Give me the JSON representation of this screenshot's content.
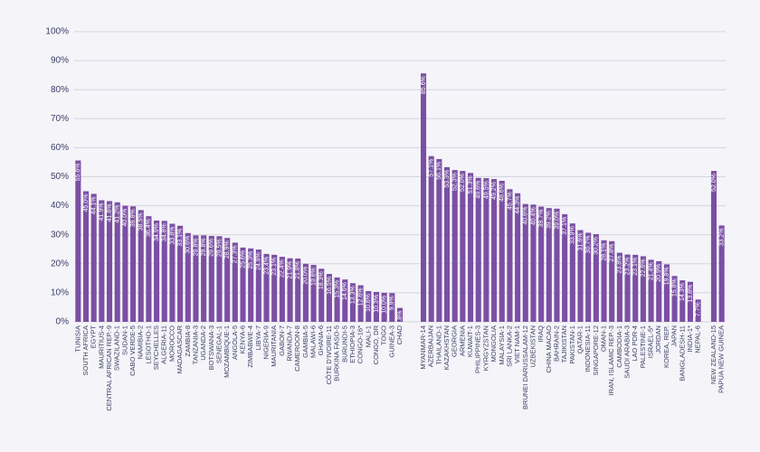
{
  "chart_data": {
    "type": "bar",
    "color": "#7b4fa3",
    "grid": true,
    "ylim": [
      0,
      100
    ],
    "yticks": [
      {
        "value": 0,
        "label": "0%"
      },
      {
        "value": 10,
        "label": "10%"
      },
      {
        "value": 20,
        "label": "20%"
      },
      {
        "value": 30,
        "label": "30%"
      },
      {
        "value": 40,
        "label": "40%"
      },
      {
        "value": 50,
        "label": "50%"
      },
      {
        "value": 60,
        "label": "60%"
      },
      {
        "value": 70,
        "label": "70%"
      },
      {
        "value": 80,
        "label": "80%"
      },
      {
        "value": 90,
        "label": "90%"
      },
      {
        "value": 100,
        "label": "100%"
      }
    ],
    "categories": [
      "TUNISIA",
      "SOUTH AFRICA",
      "EGYPT",
      "MAURITIUS-4",
      "CENTRAL AFRICAN REP.-9",
      "SWAZILAND-1",
      "SUDAN-1",
      "CABO VERDE-5",
      "NAMIBIA-2",
      "LESOTHO-1",
      "SEYCHELLES",
      "ALGERIA-11",
      "MOROCCO",
      "MADAGASCAR",
      "ZAMBIA-8",
      "TANZANIA-3",
      "UGANDA-2",
      "BOTSWANA-3",
      "SENEGAL-1",
      "MOZAMBIQUE-1",
      "ANGOLA-5",
      "KENYA-6",
      "ZIMBABWE-4",
      "LIBYA-7",
      "NIGERIA-9",
      "MAURITANIA",
      "GABON-7",
      "RWANDA-7",
      "CAMEROON-8",
      "GAMBIA-5",
      "MALAWI-6",
      "GHANA-6",
      "CÔTE D'IVOIRE-11",
      "BURKINA FASO-5",
      "BURUNDI-5",
      "ETHIOPIA-3",
      "CONGO-16*",
      "MALI-1",
      "CONGO, DR",
      "TOGO",
      "GUINEA-3",
      "CHAD",
      null,
      null,
      "MYANMAR-14",
      "AZERBAIJAN",
      "THAILAND-1",
      "KAZAKHSTAN",
      "GEORGIA",
      "ARMENIA",
      "KUWAIT-1",
      "PHILIPPINES-3",
      "KYRGYZSTAN",
      "MONGOLIA",
      "MALAYSIA-1",
      "SRI LANKA-2",
      "VIET NAM-1",
      "BRUNEI DARUSSALAM-12",
      "UZBEKISTAN",
      "IRAQ",
      "CHINA MACAO",
      "BAHRAIN-2",
      "TAJIKISTAN",
      "PAKISTAN-1",
      "QATAR-1",
      "INDONESIA-11",
      "SINGAPORE-12",
      "OMAN-1",
      "IRAN, ISLAMIC REP.-3",
      "CAMBODIA-1",
      "SAUDI ARABIA-3",
      "LAO PDR-4",
      "PALESTINE-1",
      "ISRAEL-5*",
      "JORDAN",
      "KOREA, REP.",
      "JAPAN",
      "BANGLADESH-11",
      "INDIA-1*",
      "NEPAL-6",
      null,
      "NEW ZEALAND-15",
      "PAPUA NEW GUINEA"
    ],
    "values": [
      55.6,
      45.0,
      44.1,
      41.9,
      41.6,
      41.2,
      40.0,
      39.8,
      38.5,
      36.4,
      34.9,
      34.8,
      33.8,
      33.1,
      30.6,
      29.8,
      29.8,
      29.6,
      29.5,
      28.9,
      27.3,
      25.6,
      25.3,
      24.9,
      23.4,
      23.1,
      22.4,
      21.9,
      21.8,
      20.0,
      19.6,
      18.3,
      16.5,
      15.3,
      14.6,
      13.3,
      12.6,
      10.6,
      10.3,
      10.0,
      9.9,
      4.8,
      null,
      null,
      85.6,
      57.1,
      56.1,
      53.3,
      52.3,
      52.0,
      51.3,
      49.6,
      49.5,
      49.2,
      48.6,
      45.7,
      44.3,
      40.6,
      40.4,
      39.7,
      39.2,
      39.0,
      37.1,
      33.9,
      31.6,
      30.7,
      30.2,
      28.1,
      27.8,
      23.8,
      23.2,
      23.1,
      22.6,
      21.4,
      20.9,
      19.8,
      15.8,
      14.3,
      13.8,
      7.7,
      null,
      52.0,
      33.2
    ],
    "value_labels": [
      "55.6%",
      "45.0%",
      "44.1%",
      "41.9%",
      "41.6%",
      "41.2%",
      "40.0%",
      "39.8%",
      "38.5%",
      "36.4%",
      "34.9%",
      "34.8%",
      "33.8%",
      "33.1%",
      "30.6%",
      "29.8%",
      "29.8%",
      "29.6%",
      "29.5%",
      "28.9%",
      "27.3%",
      "25.6%",
      "25.3%",
      "24.9%",
      "23.4%",
      "23.1%",
      "22.4%",
      "21.9%",
      "21.8%",
      "20.0%",
      "19.6%",
      "18.3%",
      "16.5%",
      "15.3%",
      "14.6%",
      "13.3%",
      "12.6%",
      "10.6%",
      "10.3%",
      "10.0%",
      "9.9%",
      "4.8%",
      null,
      null,
      "85.6%",
      "57.1%",
      "56.1%",
      "53.3%",
      "52.3%",
      "52.0%",
      "51.3%",
      "49.6%",
      "49.5%",
      "49.2%",
      "48.6%",
      "45.7%",
      "44.3%",
      "40.6%",
      "40.4%",
      "39.7%",
      "39.2%",
      "39.0%",
      "37.1%",
      "33.9%",
      "31.6%",
      "30.7%",
      "30.2%",
      "28.1%",
      "27.8%",
      "23.8%",
      "23.2%",
      "23.1%",
      "22.6%",
      "21.4%",
      "20.9%",
      "19.8%",
      "15.8%",
      "14.3%",
      "13.8%",
      "7.7%",
      null,
      "52.0%",
      "33.2%"
    ]
  }
}
